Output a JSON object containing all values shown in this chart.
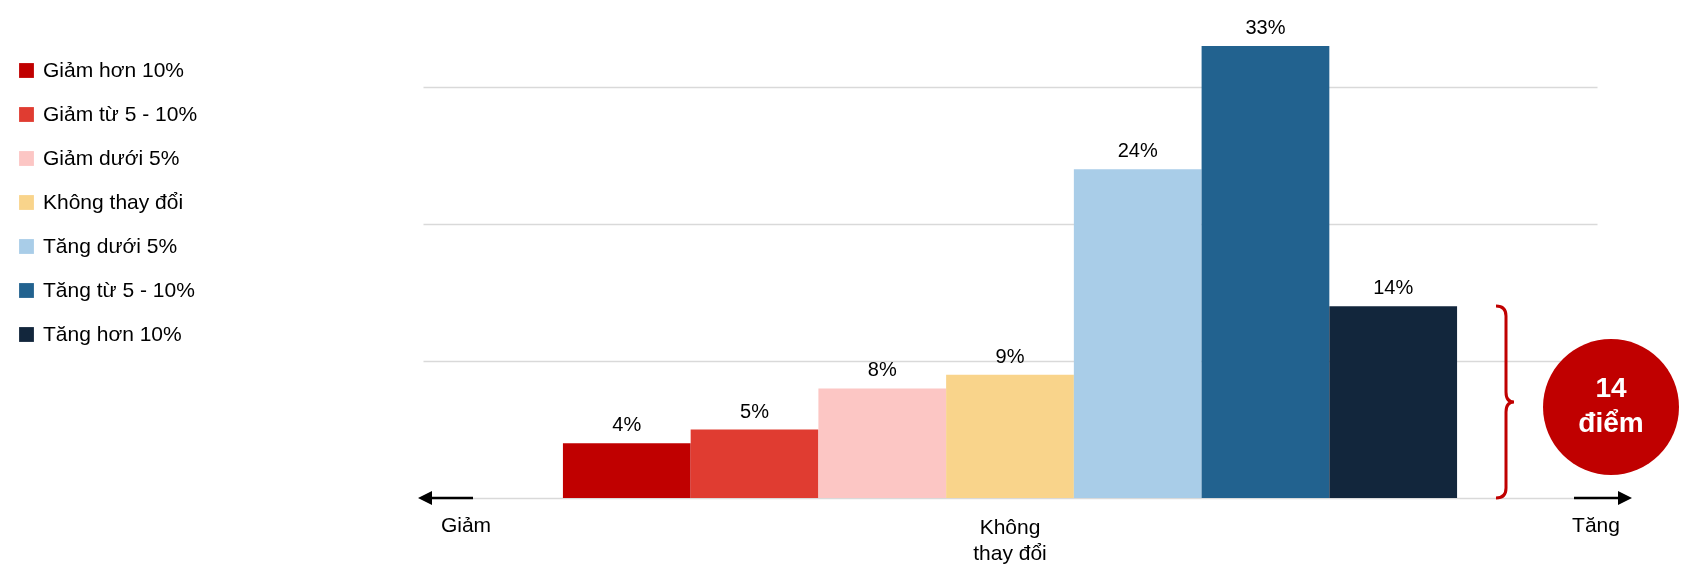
{
  "chart_data": {
    "type": "bar",
    "categories": [
      null
    ],
    "series": [
      {
        "name": "Giảm hơn 10%",
        "color": "#c00000",
        "values": [
          4
        ],
        "value_labels": [
          "4%"
        ]
      },
      {
        "name": "Giảm từ 5 - 10%",
        "color": "#e03c31",
        "values": [
          5
        ],
        "value_labels": [
          "5%"
        ]
      },
      {
        "name": "Giảm dưới 5%",
        "color": "#fcc6c4",
        "values": [
          8
        ],
        "value_labels": [
          "8%"
        ]
      },
      {
        "name": "Không thay đổi",
        "color": "#f9d48b",
        "values": [
          9
        ],
        "value_labels": [
          "9%"
        ]
      },
      {
        "name": "Tăng dưới 5%",
        "color": "#a9cde8",
        "values": [
          24
        ],
        "value_labels": [
          "24%"
        ]
      },
      {
        "name": "Tăng từ 5 - 10%",
        "color": "#22628f",
        "values": [
          33
        ],
        "value_labels": [
          "33%"
        ]
      },
      {
        "name": "Tăng hơn 10%",
        "color": "#12263c",
        "values": [
          14
        ],
        "value_labels": [
          "14%"
        ]
      }
    ],
    "yticks": [
      {
        "value": 0,
        "label": null
      },
      {
        "value": 10,
        "label": null
      },
      {
        "value": 20,
        "label": null
      },
      {
        "value": 30,
        "label": null
      }
    ],
    "grid": "y",
    "legend": "left",
    "annotations": [
      "Giảm",
      "Không thay đổi",
      "Tăng",
      "14 điểm"
    ]
  }
}
